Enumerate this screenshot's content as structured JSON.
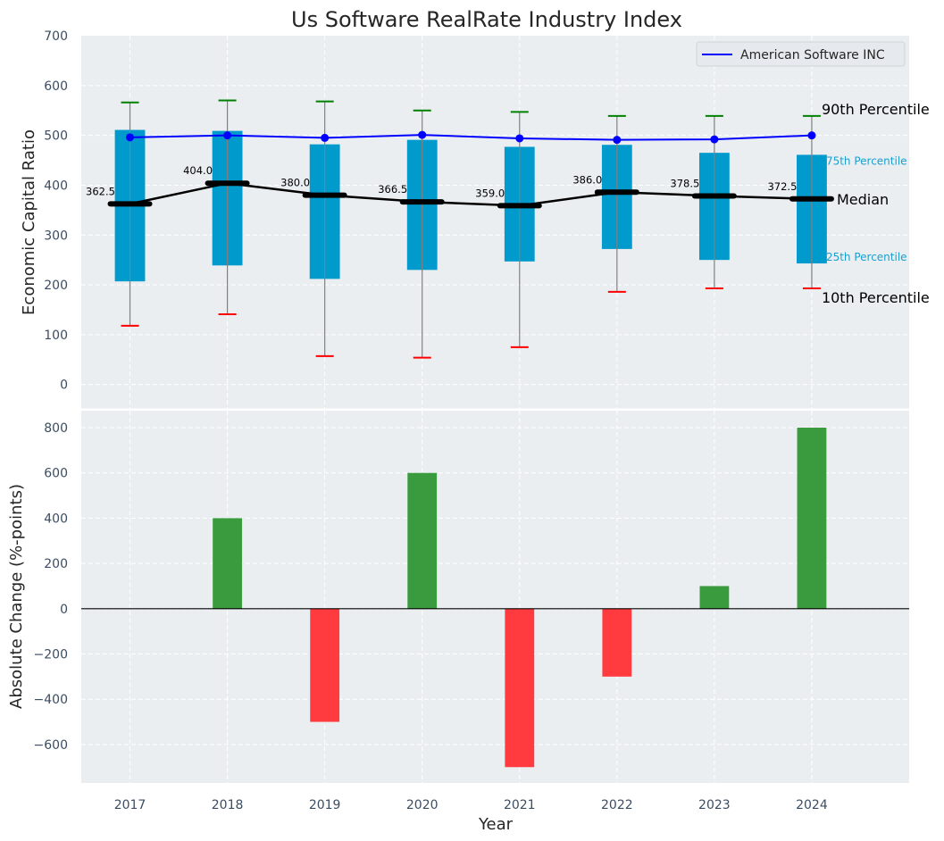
{
  "chart_data": [
    {
      "type": "box",
      "title": "Us Software RealRate Industry Index",
      "xlabel": "",
      "ylabel": "Economic Capital Ratio",
      "x": [
        2017,
        2018,
        2019,
        2020,
        2021,
        2022,
        2023,
        2024
      ],
      "xlim": [
        2016.5,
        2025
      ],
      "ylim": [
        -48,
        700
      ],
      "yticks": [
        0,
        100,
        200,
        300,
        400,
        500,
        600,
        700
      ],
      "grid": true,
      "percentiles": {
        "p90": [
          566,
          570,
          568,
          550,
          547,
          539,
          539,
          539
        ],
        "p75": [
          511,
          509,
          482,
          491,
          477,
          481,
          465,
          461
        ],
        "median": [
          362.5,
          404.0,
          380.0,
          366.5,
          359.0,
          386.0,
          378.5,
          372.5
        ],
        "p25": [
          207,
          239,
          212,
          230,
          247,
          272,
          250,
          243
        ],
        "p10": [
          118,
          141,
          57,
          54,
          75,
          186,
          193,
          193
        ]
      },
      "median_labels": [
        "362.5",
        "404.0",
        "380.0",
        "366.5",
        "359.0",
        "386.0",
        "378.5",
        "372.5"
      ],
      "series": [
        {
          "name": "American Software INC",
          "values": [
            496,
            500,
            495,
            501,
            494,
            491,
            492,
            500
          ],
          "color": "#0000ff"
        }
      ],
      "legend": {
        "entries": [
          "American Software INC"
        ],
        "placement": "top-right"
      },
      "annotations": {
        "p90": "90th Percentile",
        "p75": "75th Percentile",
        "median": "Median",
        "p25": "25th Percentile",
        "p10": "10th Percentile"
      },
      "colors": {
        "box": "#009acd",
        "p90_cap": "#008000",
        "p10_cap": "#ff0000",
        "median": "#000000",
        "whisker": "#808080",
        "percentile_label": "#1a9fcf"
      }
    },
    {
      "type": "bar",
      "title": "",
      "xlabel": "Year",
      "ylabel": "Absolute Change (%-points)",
      "categories": [
        "2017",
        "2018",
        "2019",
        "2020",
        "2021",
        "2022",
        "2023",
        "2024"
      ],
      "x": [
        2017,
        2018,
        2019,
        2020,
        2021,
        2022,
        2023,
        2024
      ],
      "values": [
        0,
        400,
        -500,
        600,
        -700,
        -300,
        100,
        800
      ],
      "xlim": [
        2016.5,
        2025
      ],
      "ylim": [
        -770,
        875
      ],
      "yticks": [
        -600,
        -400,
        -200,
        0,
        200,
        400,
        600,
        800
      ],
      "ytick_labels": [
        "−600",
        "−400",
        "−200",
        "0",
        "200",
        "400",
        "600",
        "800"
      ],
      "grid": true,
      "colors": {
        "positive": "#3a9a3e",
        "negative": "#ff3b3f",
        "zero_line": "#000000"
      }
    }
  ]
}
